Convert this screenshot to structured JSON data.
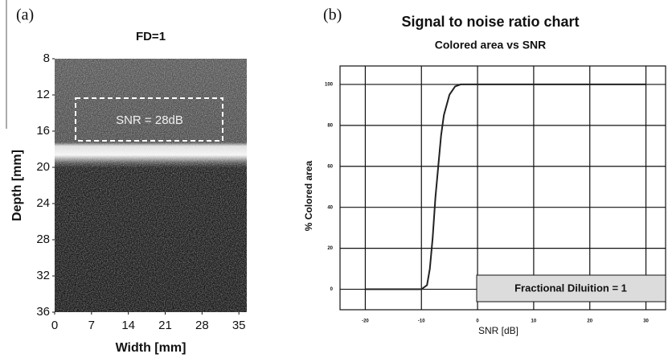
{
  "chart_data": [
    {
      "type": "image",
      "panel_label": "(a)",
      "title": "FD=1",
      "x_label": "Width [mm]",
      "y_label": "Depth [mm]",
      "xlim": [
        0,
        36.5
      ],
      "ylim": [
        36,
        8
      ],
      "xticks": [
        0,
        7,
        14,
        21,
        28,
        35
      ],
      "yticks": [
        8,
        12,
        16,
        20,
        24,
        28,
        32,
        36
      ],
      "annotation": "SNR = 28dB"
    },
    {
      "type": "line",
      "panel_label": "(b)",
      "title": "Signal to noise ratio chart",
      "subtitle": "Colored area vs SNR",
      "x_label": "SNR  [dB]",
      "y_label": "% Colored area",
      "annotation": "Fractional Diluition = 1",
      "xlim": [
        -24.5,
        33.5
      ],
      "ylim": [
        -10,
        109
      ],
      "xticks": [
        -20,
        -10,
        0,
        10,
        20,
        30
      ],
      "yticks": [
        0,
        20,
        40,
        60,
        80,
        100
      ],
      "grid": true,
      "series": [
        {
          "color": "#222222",
          "x": [
            -20,
            -10,
            -9,
            -8.5,
            -8,
            -7.5,
            -7,
            -6.5,
            -6,
            -5,
            -4,
            -3,
            30
          ],
          "values": [
            0,
            0,
            2,
            10,
            25,
            45,
            60,
            75,
            85,
            95,
            99,
            100,
            100
          ]
        }
      ]
    }
  ]
}
